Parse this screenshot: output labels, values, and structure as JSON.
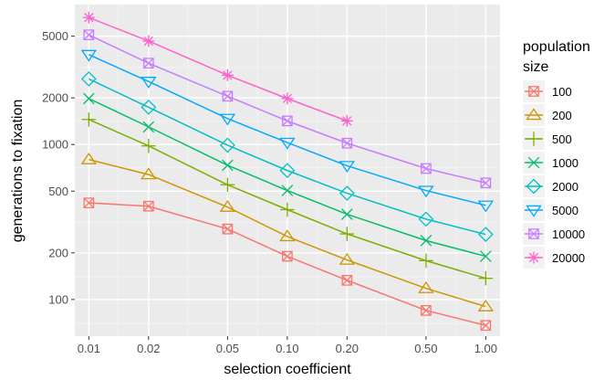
{
  "chart_data": {
    "type": "line",
    "xlabel": "selection coefficient",
    "ylabel": "generations to fixation",
    "x_scale": "log",
    "y_scale": "log",
    "xlim": [
      0.0085,
      1.18
    ],
    "ylim": [
      58,
      8000
    ],
    "x_ticks": [
      {
        "value": 0.01,
        "label": "0.01"
      },
      {
        "value": 0.02,
        "label": "0.02"
      },
      {
        "value": 0.05,
        "label": "0.05"
      },
      {
        "value": 0.1,
        "label": "0.10"
      },
      {
        "value": 0.2,
        "label": "0.20"
      },
      {
        "value": 0.5,
        "label": "0.50"
      },
      {
        "value": 1,
        "label": "1.00"
      }
    ],
    "y_ticks": [
      {
        "value": 100,
        "label": "100"
      },
      {
        "value": 200,
        "label": "200"
      },
      {
        "value": 500,
        "label": "500"
      },
      {
        "value": 1000,
        "label": "1000"
      },
      {
        "value": 2000,
        "label": "2000"
      },
      {
        "value": 5000,
        "label": "5000"
      }
    ],
    "y_minor": [
      70,
      140,
      316,
      707,
      1414,
      3162
    ],
    "x_minor": [
      0.014,
      0.0316,
      0.0707,
      0.1414,
      0.316,
      0.707
    ],
    "grid": true,
    "legend": {
      "title_line1": "population",
      "title_line2": "size",
      "placement": "right"
    },
    "x": [
      0.01,
      0.02,
      0.05,
      0.1,
      0.2,
      0.5,
      1.0
    ],
    "series": [
      {
        "name": "100",
        "color": "#F8766D",
        "marker": "square-x",
        "values": [
          420,
          400,
          285,
          190,
          133,
          85,
          68
        ]
      },
      {
        "name": "200",
        "color": "#CD9600",
        "marker": "triangle-up",
        "values": [
          800,
          640,
          395,
          255,
          180,
          118,
          90
        ]
      },
      {
        "name": "500",
        "color": "#7CAE00",
        "marker": "plus",
        "values": [
          1450,
          980,
          550,
          380,
          265,
          178,
          137
        ]
      },
      {
        "name": "1000",
        "color": "#00BE67",
        "marker": "cross",
        "values": [
          1980,
          1300,
          735,
          505,
          355,
          240,
          190
        ]
      },
      {
        "name": "2000",
        "color": "#00BFC4",
        "marker": "diamond",
        "values": [
          2650,
          1740,
          990,
          680,
          485,
          330,
          263
        ]
      },
      {
        "name": "5000",
        "color": "#00A9FF",
        "marker": "triangle-down",
        "values": [
          3800,
          2550,
          1470,
          1030,
          730,
          505,
          405
        ]
      },
      {
        "name": "10000",
        "color": "#C77CFF",
        "marker": "square-x",
        "values": [
          5100,
          3350,
          2050,
          1420,
          1020,
          700,
          565
        ]
      },
      {
        "name": "20000",
        "color": "#FF61CC",
        "marker": "asterisk",
        "values": [
          6600,
          4650,
          2800,
          1980,
          1420,
          null,
          null
        ]
      }
    ]
  }
}
